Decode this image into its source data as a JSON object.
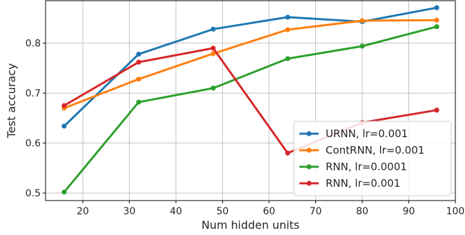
{
  "chart_data": {
    "type": "line",
    "xlabel": "Num hidden units",
    "ylabel": "Test accuracy",
    "xlim": [
      12,
      100
    ],
    "ylim": [
      0.485,
      0.885
    ],
    "xticks": [
      20,
      30,
      40,
      50,
      60,
      70,
      80,
      90,
      100
    ],
    "yticks": [
      0.5,
      0.6,
      0.7,
      0.8
    ],
    "xtick_labels": [
      "20",
      "30",
      "40",
      "50",
      "60",
      "70",
      "80",
      "90",
      "100"
    ],
    "ytick_labels": [
      "0.5",
      "0.6",
      "0.7",
      "0.8"
    ],
    "grid": true,
    "legend_position": "lower-right",
    "x": [
      16,
      32,
      48,
      64,
      80,
      96
    ],
    "series": [
      {
        "name": "URNN, lr=0.001",
        "color": "#1f77b4",
        "values": [
          0.634,
          0.778,
          0.828,
          0.852,
          0.843,
          0.871
        ]
      },
      {
        "name": "ContRNN, lr=0.001",
        "color": "#ff7f0e",
        "values": [
          0.67,
          0.728,
          0.779,
          0.827,
          0.845,
          0.846
        ]
      },
      {
        "name": "RNN, lr=0.0001",
        "color": "#2ca02c",
        "values": [
          0.502,
          0.682,
          0.71,
          0.769,
          0.794,
          0.833
        ]
      },
      {
        "name": "RNN, lr=0.001",
        "color": "#d62728",
        "values": [
          0.675,
          0.762,
          0.79,
          0.58,
          0.641,
          0.666
        ]
      }
    ]
  }
}
